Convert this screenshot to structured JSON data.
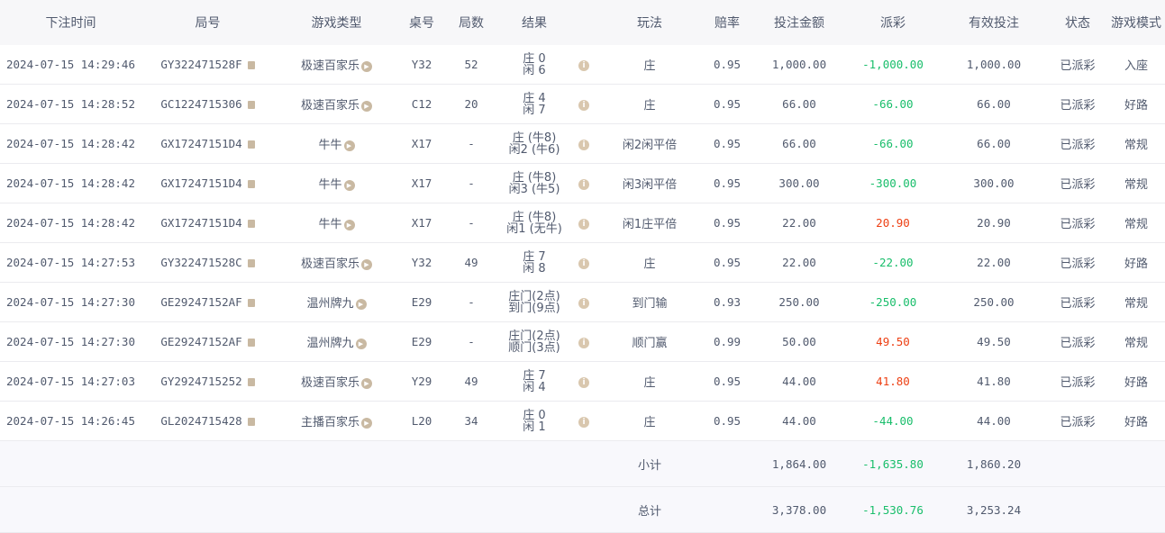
{
  "columns": [
    "下注时间",
    "局号",
    "游戏类型",
    "桌号",
    "局数",
    "结果",
    "",
    "玩法",
    "赔率",
    "投注金额",
    "派彩",
    "有效投注",
    "状态",
    "游戏模式"
  ],
  "rows": [
    {
      "time": "2024-07-15 14:29:46",
      "round": "GY322471528F",
      "game": "极速百家乐",
      "table": "Y32",
      "count": "52",
      "result": [
        "庄 0",
        "闲 6"
      ],
      "play": "庄",
      "odds": "0.95",
      "bet": "1,000.00",
      "payout": "-1,000.00",
      "valid": "1,000.00",
      "status": "已派彩",
      "mode": "入座"
    },
    {
      "time": "2024-07-15 14:28:52",
      "round": "GC1224715306",
      "game": "极速百家乐",
      "table": "C12",
      "count": "20",
      "result": [
        "庄 4",
        "闲 7"
      ],
      "play": "庄",
      "odds": "0.95",
      "bet": "66.00",
      "payout": "-66.00",
      "valid": "66.00",
      "status": "已派彩",
      "mode": "好路"
    },
    {
      "time": "2024-07-15 14:28:42",
      "round": "GX17247151D4",
      "game": "牛牛",
      "table": "X17",
      "count": "-",
      "result": [
        "庄 (牛8)",
        "闲2 (牛6)"
      ],
      "play": "闲2闲平倍",
      "odds": "0.95",
      "bet": "66.00",
      "payout": "-66.00",
      "valid": "66.00",
      "status": "已派彩",
      "mode": "常规"
    },
    {
      "time": "2024-07-15 14:28:42",
      "round": "GX17247151D4",
      "game": "牛牛",
      "table": "X17",
      "count": "-",
      "result": [
        "庄 (牛8)",
        "闲3 (牛5)"
      ],
      "play": "闲3闲平倍",
      "odds": "0.95",
      "bet": "300.00",
      "payout": "-300.00",
      "valid": "300.00",
      "status": "已派彩",
      "mode": "常规"
    },
    {
      "time": "2024-07-15 14:28:42",
      "round": "GX17247151D4",
      "game": "牛牛",
      "table": "X17",
      "count": "-",
      "result": [
        "庄 (牛8)",
        "闲1 (无牛)"
      ],
      "play": "闲1庄平倍",
      "odds": "0.95",
      "bet": "22.00",
      "payout": "20.90",
      "valid": "20.90",
      "status": "已派彩",
      "mode": "常规"
    },
    {
      "time": "2024-07-15 14:27:53",
      "round": "GY322471528C",
      "game": "极速百家乐",
      "table": "Y32",
      "count": "49",
      "result": [
        "庄 7",
        "闲 8"
      ],
      "play": "庄",
      "odds": "0.95",
      "bet": "22.00",
      "payout": "-22.00",
      "valid": "22.00",
      "status": "已派彩",
      "mode": "好路"
    },
    {
      "time": "2024-07-15 14:27:30",
      "round": "GE29247152AF",
      "game": "温州牌九",
      "table": "E29",
      "count": "-",
      "result": [
        "庄门(2点)",
        "到门(9点)"
      ],
      "play": "到门输",
      "odds": "0.93",
      "bet": "250.00",
      "payout": "-250.00",
      "valid": "250.00",
      "status": "已派彩",
      "mode": "常规"
    },
    {
      "time": "2024-07-15 14:27:30",
      "round": "GE29247152AF",
      "game": "温州牌九",
      "table": "E29",
      "count": "-",
      "result": [
        "庄门(2点)",
        "顺门(3点)"
      ],
      "play": "顺门赢",
      "odds": "0.99",
      "bet": "50.00",
      "payout": "49.50",
      "valid": "49.50",
      "status": "已派彩",
      "mode": "常规"
    },
    {
      "time": "2024-07-15 14:27:03",
      "round": "GY2924715252",
      "game": "极速百家乐",
      "table": "Y29",
      "count": "49",
      "result": [
        "庄 7",
        "闲 4"
      ],
      "play": "庄",
      "odds": "0.95",
      "bet": "44.00",
      "payout": "41.80",
      "valid": "41.80",
      "status": "已派彩",
      "mode": "好路"
    },
    {
      "time": "2024-07-15 14:26:45",
      "round": "GL2024715428",
      "game": "主播百家乐",
      "table": "L20",
      "count": "34",
      "result": [
        "庄 0",
        "闲 1"
      ],
      "play": "庄",
      "odds": "0.95",
      "bet": "44.00",
      "payout": "-44.00",
      "valid": "44.00",
      "status": "已派彩",
      "mode": "好路"
    }
  ],
  "subtotal": {
    "label": "小计",
    "bet": "1,864.00",
    "payout": "-1,635.80",
    "valid": "1,860.20"
  },
  "total": {
    "label": "总计",
    "bet": "3,378.00",
    "payout": "-1,530.76",
    "valid": "3,253.24"
  },
  "colors": {
    "negative": "#19be6b",
    "positive": "#ed4014"
  },
  "icons": {
    "copy": "copy-icon",
    "play": "play-icon",
    "info": "info-icon"
  }
}
